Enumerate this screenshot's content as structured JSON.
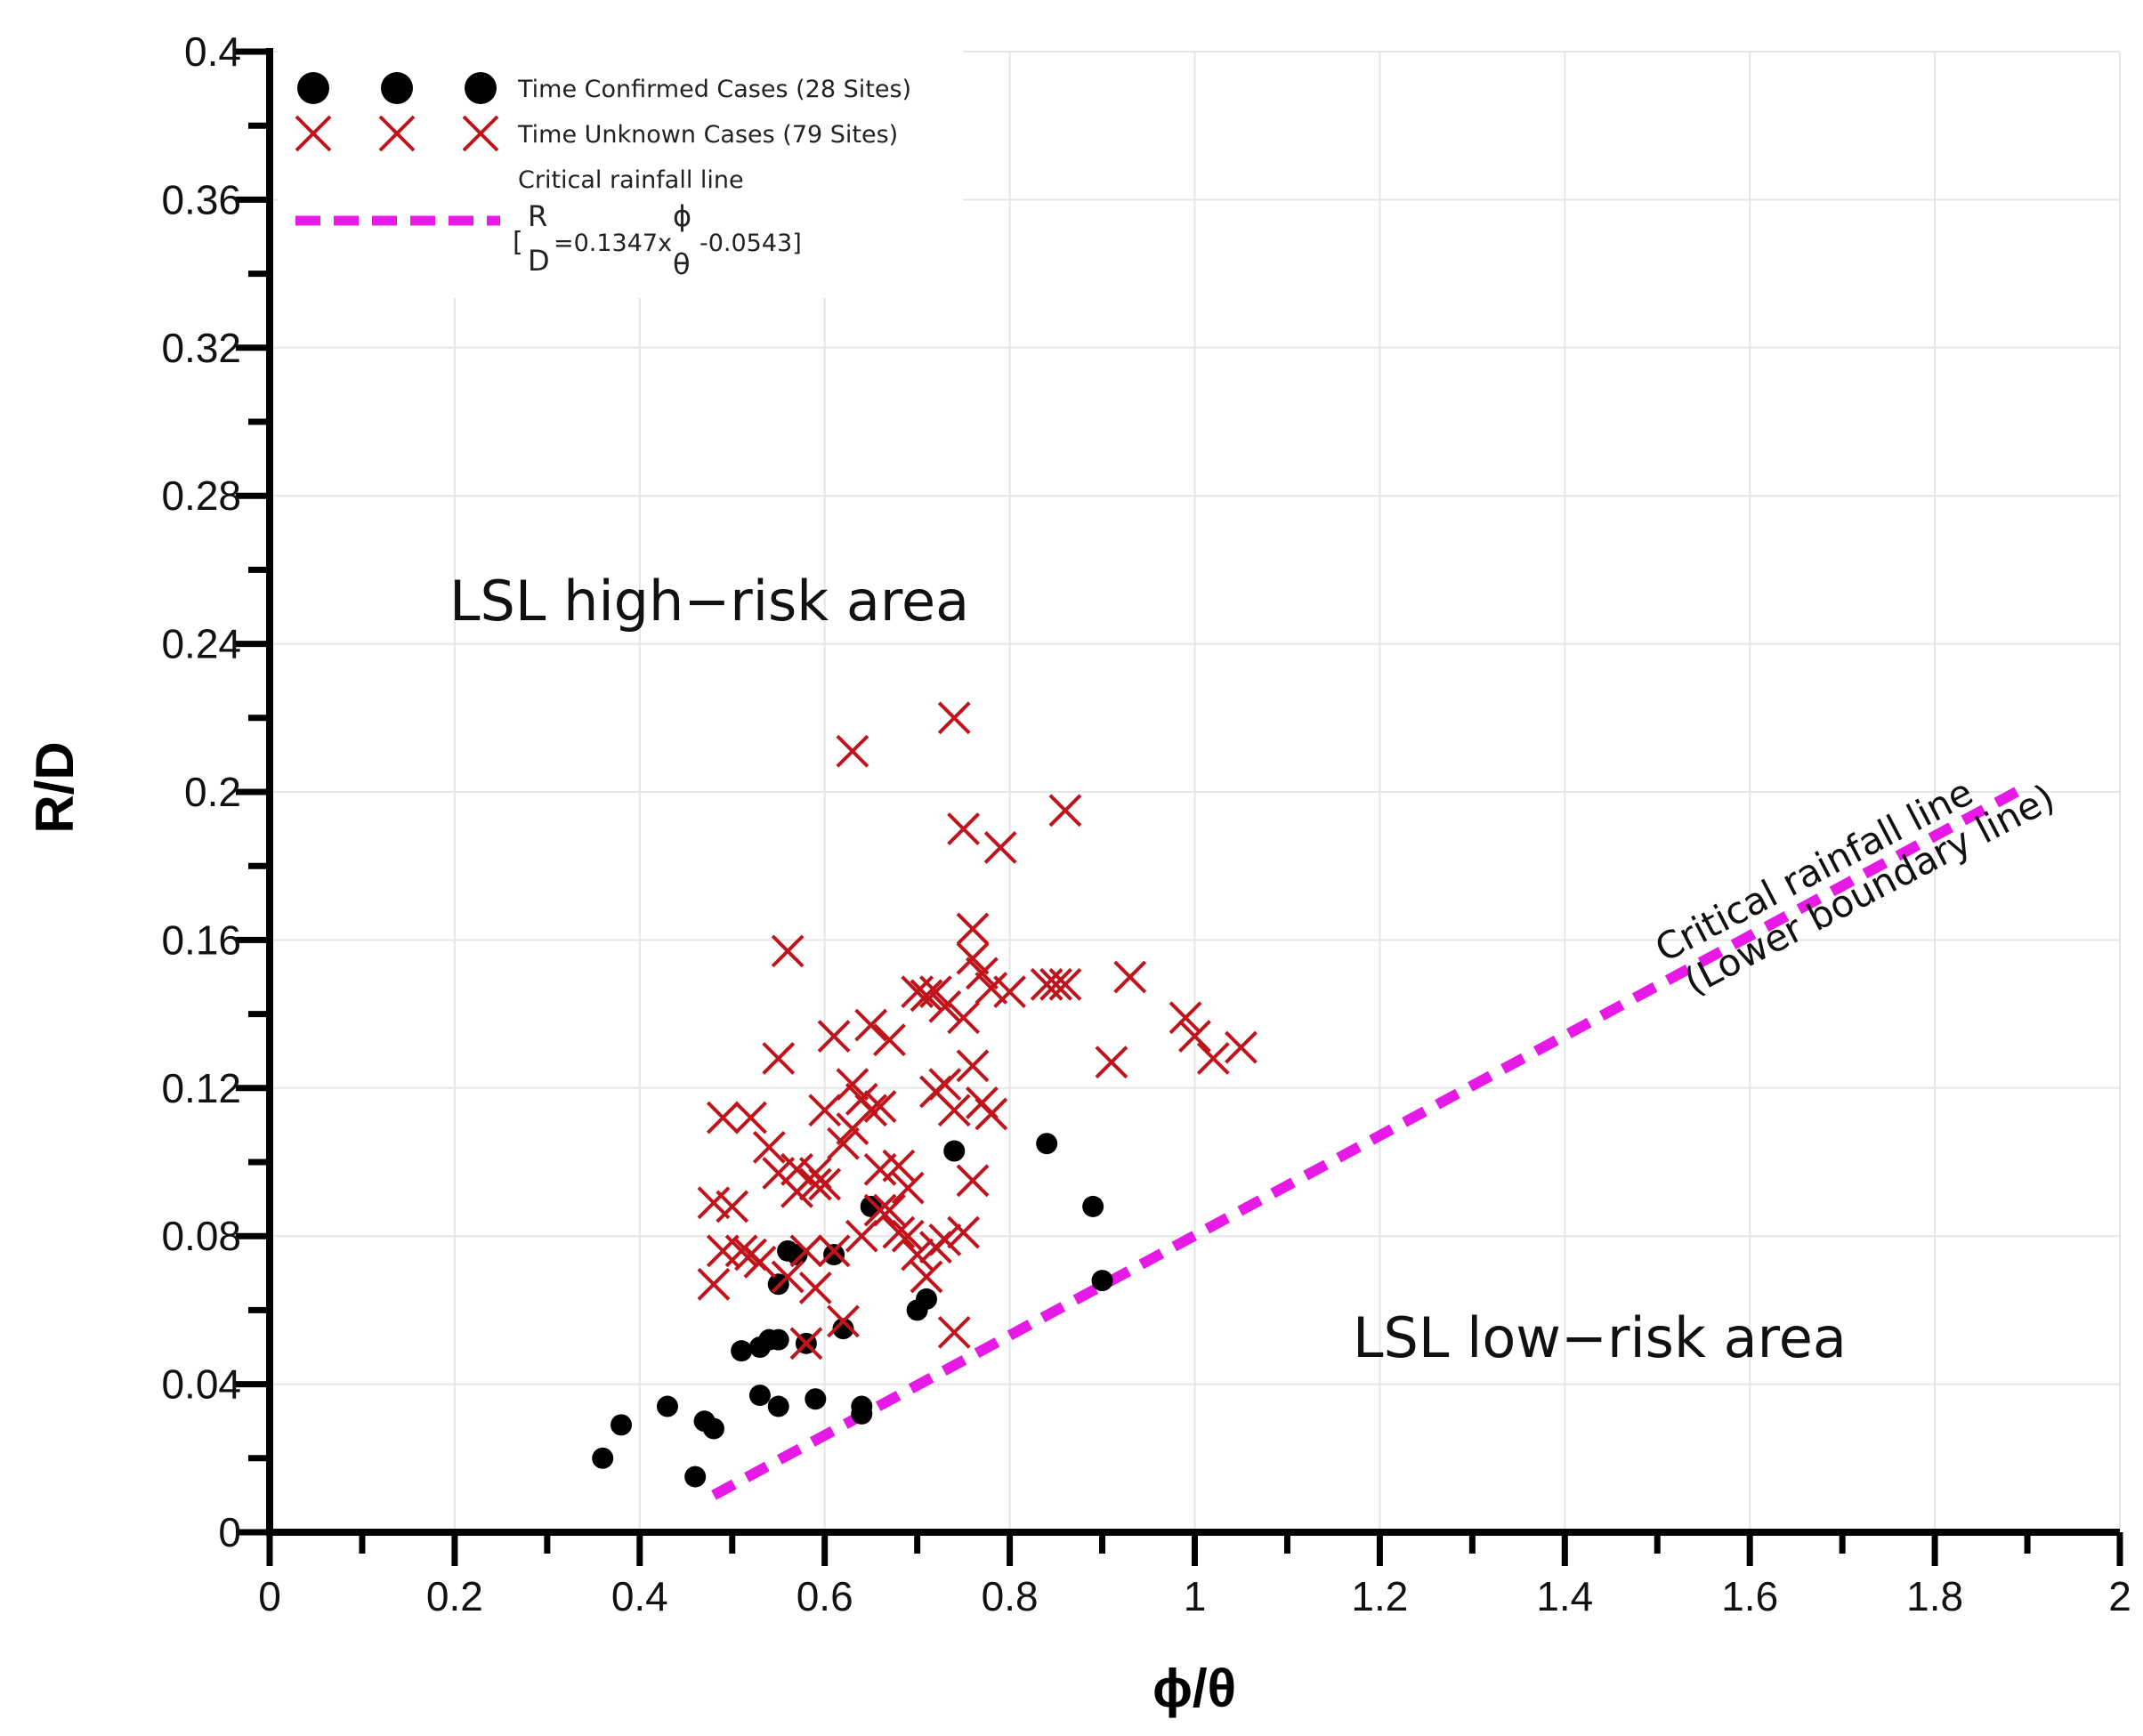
{
  "chart_data": {
    "type": "scatter",
    "xlabel": "ϕ/θ",
    "ylabel": "R/D",
    "xlim": [
      0,
      2
    ],
    "ylim": [
      0,
      0.4
    ],
    "x_ticks": [
      "0",
      "0.2",
      "0.4",
      "0.6",
      "0.8",
      "1",
      "1.2",
      "1.4",
      "1.6",
      "1.8",
      "2"
    ],
    "y_ticks": [
      "0",
      "0.04",
      "0.08",
      "0.12",
      "0.16",
      "0.2",
      "0.24",
      "0.28",
      "0.32",
      "0.36",
      "0.4"
    ],
    "grid": true,
    "legend_position": "top-left",
    "legend": {
      "confirmed": "Time Confirmed Cases (28 Sites)",
      "unknown": "Time Unknown Cases (79 Sites)",
      "line_title": "Critical rainfall line",
      "eq_open": "[",
      "eq_R": "R",
      "eq_D": "D",
      "eq_mid": "=0.1347x",
      "eq_phi": "ϕ",
      "eq_theta": "θ",
      "eq_end": "-0.0543]"
    },
    "annotations": {
      "high_risk": "LSL high−risk area",
      "low_risk": "LSL low−risk area",
      "line_label_1": "Critical rainfall line",
      "line_label_2": "(Lower boundary line)"
    },
    "colors": {
      "confirmed": "#000000",
      "unknown": "#c0141c",
      "critical_line": "#e619e6",
      "grid": "#e6e6e6"
    },
    "series": [
      {
        "name": "Time Confirmed Cases (28 Sites)",
        "marker": "circle",
        "x": [
          0.36,
          0.38,
          0.43,
          0.46,
          0.47,
          0.48,
          0.51,
          0.53,
          0.54,
          0.55,
          0.55,
          0.56,
          0.58,
          0.59,
          0.61,
          0.62,
          0.64,
          0.64,
          0.65,
          0.7,
          0.71,
          0.74,
          0.84,
          0.89,
          0.9,
          0.55,
          0.57,
          0.53
        ],
        "y": [
          0.02,
          0.029,
          0.034,
          0.015,
          0.03,
          0.028,
          0.049,
          0.037,
          0.052,
          0.034,
          0.067,
          0.076,
          0.051,
          0.036,
          0.075,
          0.055,
          0.034,
          0.032,
          0.088,
          0.06,
          0.063,
          0.103,
          0.105,
          0.088,
          0.068,
          0.052,
          0.075,
          0.05
        ]
      },
      {
        "name": "Time Unknown Cases (79 Sites)",
        "marker": "cross",
        "x": [
          0.48,
          0.48,
          0.49,
          0.49,
          0.5,
          0.51,
          0.52,
          0.52,
          0.53,
          0.54,
          0.55,
          0.55,
          0.56,
          0.56,
          0.57,
          0.57,
          0.58,
          0.58,
          0.59,
          0.59,
          0.6,
          0.6,
          0.61,
          0.61,
          0.62,
          0.62,
          0.63,
          0.63,
          0.63,
          0.64,
          0.64,
          0.65,
          0.65,
          0.66,
          0.66,
          0.66,
          0.67,
          0.67,
          0.68,
          0.68,
          0.69,
          0.69,
          0.7,
          0.7,
          0.71,
          0.71,
          0.72,
          0.72,
          0.72,
          0.73,
          0.73,
          0.74,
          0.74,
          0.74,
          0.75,
          0.75,
          0.75,
          0.76,
          0.76,
          0.76,
          0.76,
          0.77,
          0.77,
          0.78,
          0.78,
          0.79,
          0.8,
          0.84,
          0.85,
          0.86,
          0.86,
          0.91,
          0.93,
          0.99,
          1.0,
          1.02,
          1.05,
          0.73,
          0.59
        ],
        "y": [
          0.089,
          0.067,
          0.076,
          0.112,
          0.088,
          0.076,
          0.112,
          0.075,
          0.073,
          0.104,
          0.128,
          0.097,
          0.157,
          0.069,
          0.098,
          0.092,
          0.051,
          0.076,
          0.097,
          0.066,
          0.114,
          0.094,
          0.134,
          0.076,
          0.105,
          0.057,
          0.121,
          0.109,
          0.211,
          0.117,
          0.08,
          0.114,
          0.137,
          0.098,
          0.115,
          0.087,
          0.133,
          0.087,
          0.099,
          0.081,
          0.093,
          0.08,
          0.146,
          0.075,
          0.145,
          0.069,
          0.119,
          0.146,
          0.077,
          0.142,
          0.079,
          0.22,
          0.114,
          0.054,
          0.19,
          0.139,
          0.081,
          0.163,
          0.155,
          0.126,
          0.095,
          0.151,
          0.116,
          0.147,
          0.113,
          0.185,
          0.146,
          0.148,
          0.148,
          0.195,
          0.148,
          0.127,
          0.15,
          0.139,
          0.134,
          0.128,
          0.131,
          0.121,
          0.094
        ]
      },
      {
        "name": "Critical rainfall line",
        "type": "line",
        "style": "dashed",
        "x": [
          0.48,
          1.9
        ],
        "y": [
          0.01,
          0.2016
        ]
      }
    ]
  }
}
